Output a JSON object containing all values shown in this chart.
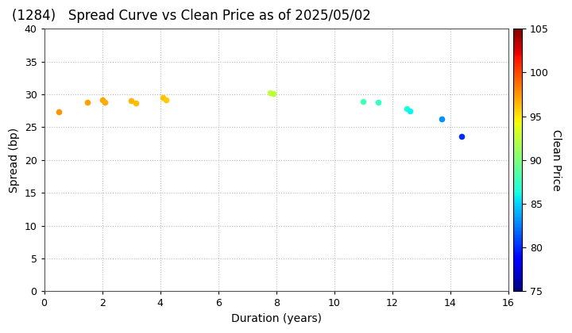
{
  "title": "(1284)   Spread Curve vs Clean Price as of 2025/05/02",
  "xlabel": "Duration (years)",
  "ylabel": "Spread (bp)",
  "colorbar_label": "Clean Price",
  "xlim": [
    0,
    16
  ],
  "ylim": [
    0,
    40
  ],
  "xticks": [
    0,
    2,
    4,
    6,
    8,
    10,
    12,
    14,
    16
  ],
  "yticks": [
    0,
    5,
    10,
    15,
    20,
    25,
    30,
    35,
    40
  ],
  "colorbar_min": 75,
  "colorbar_max": 105,
  "colorbar_ticks": [
    75,
    80,
    85,
    90,
    95,
    100,
    105
  ],
  "points": [
    {
      "duration": 0.5,
      "spread": 27.3,
      "price": 97.5
    },
    {
      "duration": 1.5,
      "spread": 28.8,
      "price": 97.2
    },
    {
      "duration": 2.0,
      "spread": 29.2,
      "price": 97.0
    },
    {
      "duration": 2.1,
      "spread": 28.8,
      "price": 96.8
    },
    {
      "duration": 3.0,
      "spread": 29.0,
      "price": 96.5
    },
    {
      "duration": 3.15,
      "spread": 28.7,
      "price": 96.3
    },
    {
      "duration": 4.1,
      "spread": 29.5,
      "price": 96.0
    },
    {
      "duration": 4.2,
      "spread": 29.2,
      "price": 95.8
    },
    {
      "duration": 7.8,
      "spread": 30.2,
      "price": 92.5
    },
    {
      "duration": 7.9,
      "spread": 30.1,
      "price": 92.3
    },
    {
      "duration": 11.0,
      "spread": 28.9,
      "price": 88.0
    },
    {
      "duration": 11.5,
      "spread": 28.8,
      "price": 87.5
    },
    {
      "duration": 12.5,
      "spread": 27.8,
      "price": 86.5
    },
    {
      "duration": 12.6,
      "spread": 27.5,
      "price": 86.0
    },
    {
      "duration": 13.7,
      "spread": 26.2,
      "price": 83.0
    },
    {
      "duration": 14.4,
      "spread": 23.6,
      "price": 80.0
    }
  ],
  "background_color": "#ffffff",
  "grid_color": "#bbbbbb",
  "title_fontsize": 12,
  "axis_fontsize": 10,
  "tick_fontsize": 9,
  "marker_size": 20
}
